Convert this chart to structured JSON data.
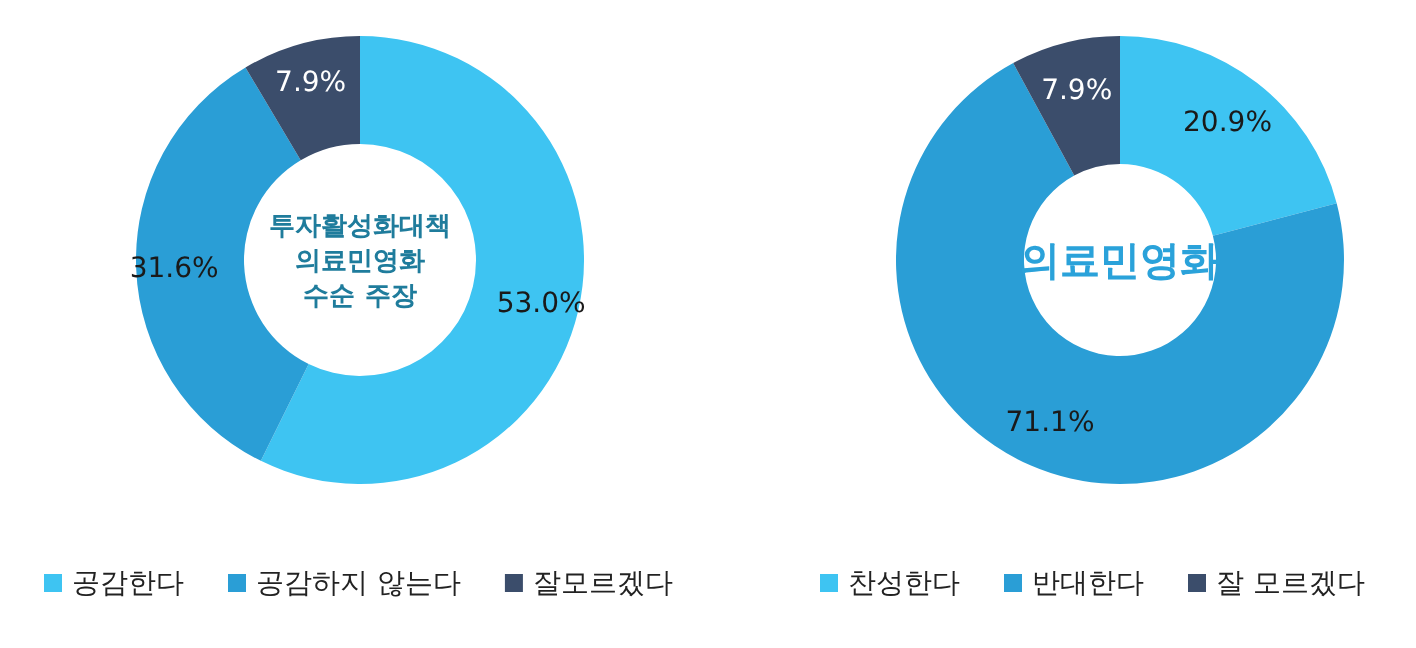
{
  "chart_data": [
    {
      "type": "donut",
      "title": "투자활성화대책\n의료민영화\n수순 주장",
      "categories": [
        "공감한다",
        "공감하지 않는다",
        "잘모르겠다"
      ],
      "values": [
        53.0,
        31.6,
        7.9
      ],
      "colors": [
        "#3ec4f2",
        "#2a9ed6",
        "#3b4d6b"
      ],
      "value_labels": [
        "53.0%",
        "31.6%",
        "7.9%"
      ],
      "legend": "bottom"
    },
    {
      "type": "donut",
      "title": "의료민영화",
      "categories": [
        "찬성한다",
        "반대한다",
        "잘 모르겠다"
      ],
      "values": [
        20.9,
        71.1,
        7.9
      ],
      "colors": [
        "#3ec4f2",
        "#2a9ed6",
        "#3b4d6b"
      ],
      "value_labels": [
        "20.9%",
        "71.1%",
        "7.9%"
      ],
      "legend": "bottom"
    }
  ]
}
